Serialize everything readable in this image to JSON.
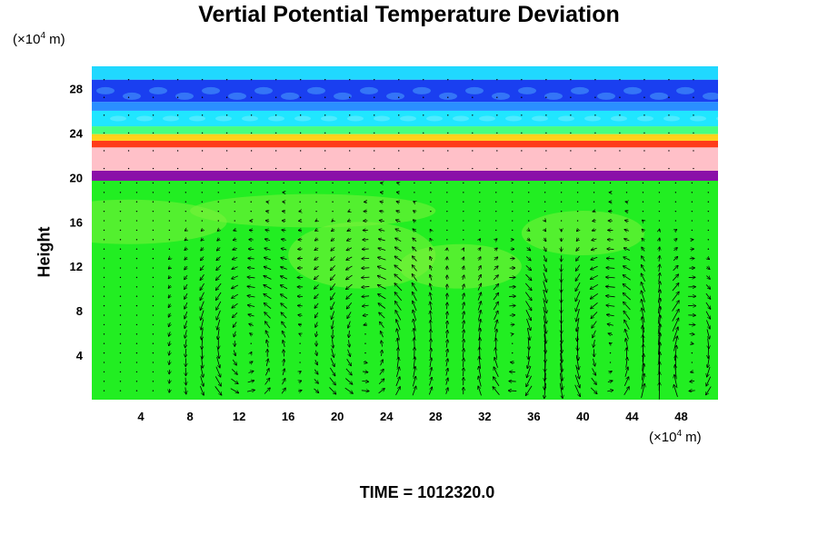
{
  "chart_data": {
    "type": "heatmap",
    "title": "Vertial Potential Temperature Deviation",
    "ylabel": "Height",
    "xunit_prefix": "(×10",
    "xunit_exp": "4",
    "xunit_suffix": " m)",
    "yunit_prefix": "(×10",
    "yunit_exp": "4",
    "yunit_suffix": " m)",
    "time_label": "TIME = 1012320.0",
    "xlim": [
      0,
      51
    ],
    "ylim": [
      0,
      30
    ],
    "xticks": [
      4,
      8,
      12,
      16,
      20,
      24,
      28,
      32,
      36,
      40,
      44,
      48
    ],
    "yticks": [
      4,
      8,
      12,
      16,
      20,
      24,
      28
    ],
    "layers": [
      {
        "y0": 0,
        "y1": 19.7,
        "color": "#22ee22"
      },
      {
        "y0": 19.7,
        "y1": 20.6,
        "color": "#8a10a8"
      },
      {
        "y0": 20.6,
        "y1": 22.7,
        "color": "#ffc0c8"
      },
      {
        "y0": 22.7,
        "y1": 23.3,
        "color": "#ff3b1a"
      },
      {
        "y0": 23.3,
        "y1": 23.9,
        "color": "#ffd21a"
      },
      {
        "y0": 23.9,
        "y1": 24.6,
        "color": "#46ff80"
      },
      {
        "y0": 24.6,
        "y1": 26.0,
        "color": "#20e6ff"
      },
      {
        "y0": 26.0,
        "y1": 26.8,
        "color": "#2a8fff"
      },
      {
        "y0": 26.8,
        "y1": 28.8,
        "color": "#1a3ff0"
      },
      {
        "y0": 28.8,
        "y1": 30.0,
        "color": "#20d8ff"
      }
    ],
    "vortices": [
      {
        "cx": 12.5,
        "cy": 4.5,
        "rx": 4.0,
        "ry": 7.5,
        "dir": 1
      },
      {
        "cx": 22.5,
        "cy": 5.0,
        "rx": 4.5,
        "ry": 8.0,
        "dir": 1
      },
      {
        "cx": 34.5,
        "cy": 4.5,
        "rx": 3.0,
        "ry": 7.0,
        "dir": -1
      },
      {
        "cx": 42.0,
        "cy": 4.5,
        "rx": 4.0,
        "ry": 7.5,
        "dir": 1
      },
      {
        "cx": 48.5,
        "cy": 4.0,
        "rx": 2.5,
        "ry": 6.5,
        "dir": -1
      }
    ]
  }
}
